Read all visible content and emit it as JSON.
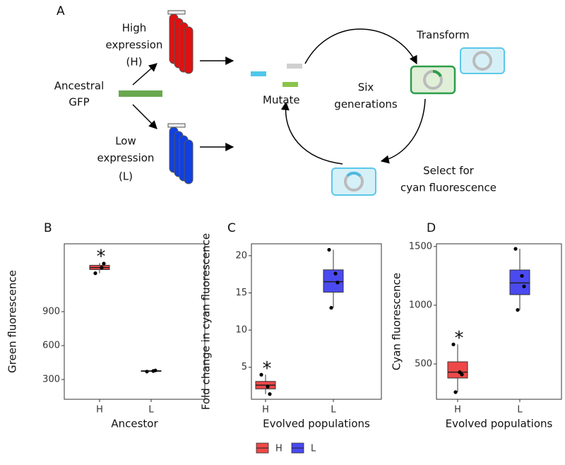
{
  "panel_a": {
    "label": "A",
    "high": [
      "High",
      "expression",
      "(H)"
    ],
    "ancestral": [
      "Ancestral",
      "GFP"
    ],
    "low": [
      "Low",
      "expression",
      "(L)"
    ],
    "mutate": "Mutate",
    "six": [
      "Six",
      "generations"
    ],
    "transform": "Transform",
    "select": [
      "Select for",
      "cyan fluorescence"
    ]
  },
  "chart_data": [
    {
      "type": "box",
      "label": "B",
      "x_label": "Ancestor",
      "y_label": "Green fluorescence",
      "categories": [
        "H",
        "L"
      ],
      "colors": [
        "#ef4848",
        "#4a4af0"
      ],
      "ylim": [
        125,
        1500
      ],
      "yticks": [
        300,
        600,
        900
      ],
      "annotation": "*",
      "boxes": [
        {
          "min": 1240,
          "q1": 1272,
          "median": 1290,
          "q3": 1310,
          "max": 1330,
          "points": [
            1240,
            1290,
            1325
          ]
        },
        {
          "min": 370,
          "q1": 372,
          "median": 375,
          "q3": 378,
          "max": 380,
          "points": [
            370,
            375,
            380
          ]
        }
      ]
    },
    {
      "type": "box",
      "label": "C",
      "x_label": "Evolved populations",
      "y_label": "Fold change in cyan fluorescence",
      "categories": [
        "H",
        "L"
      ],
      "colors": [
        "#ef4848",
        "#4a4af0"
      ],
      "ylim": [
        0.7,
        21.6
      ],
      "yticks": [
        5,
        10,
        15,
        20
      ],
      "annotation": "*",
      "boxes": [
        {
          "min": 1.4,
          "q1": 2.1,
          "median": 2.6,
          "q3": 3.1,
          "max": 4.0,
          "points": [
            4.0,
            2.4,
            1.4
          ]
        },
        {
          "min": 13.0,
          "q1": 15.1,
          "median": 16.5,
          "q3": 18.1,
          "max": 20.8,
          "points": [
            20.8,
            17.6,
            16.4,
            13.0
          ]
        }
      ]
    },
    {
      "type": "box",
      "label": "D",
      "x_label": "Evolved populations",
      "y_label": "Cyan fluorescence",
      "categories": [
        "H",
        "L"
      ],
      "colors": [
        "#ef4848",
        "#4a4af0"
      ],
      "ylim": [
        199,
        1523
      ],
      "yticks": [
        500,
        1000,
        1500
      ],
      "annotation": "*",
      "boxes": [
        {
          "min": 260,
          "q1": 380,
          "median": 430,
          "q3": 518,
          "max": 666,
          "points": [
            666,
            430,
            410,
            260
          ]
        },
        {
          "min": 960,
          "q1": 1090,
          "median": 1190,
          "q3": 1300,
          "max": 1480,
          "points": [
            1480,
            1250,
            1160,
            960
          ]
        }
      ]
    }
  ],
  "legend": [
    {
      "name": "H",
      "color": "#ef4848"
    },
    {
      "name": "L",
      "color": "#4a4af0"
    }
  ]
}
